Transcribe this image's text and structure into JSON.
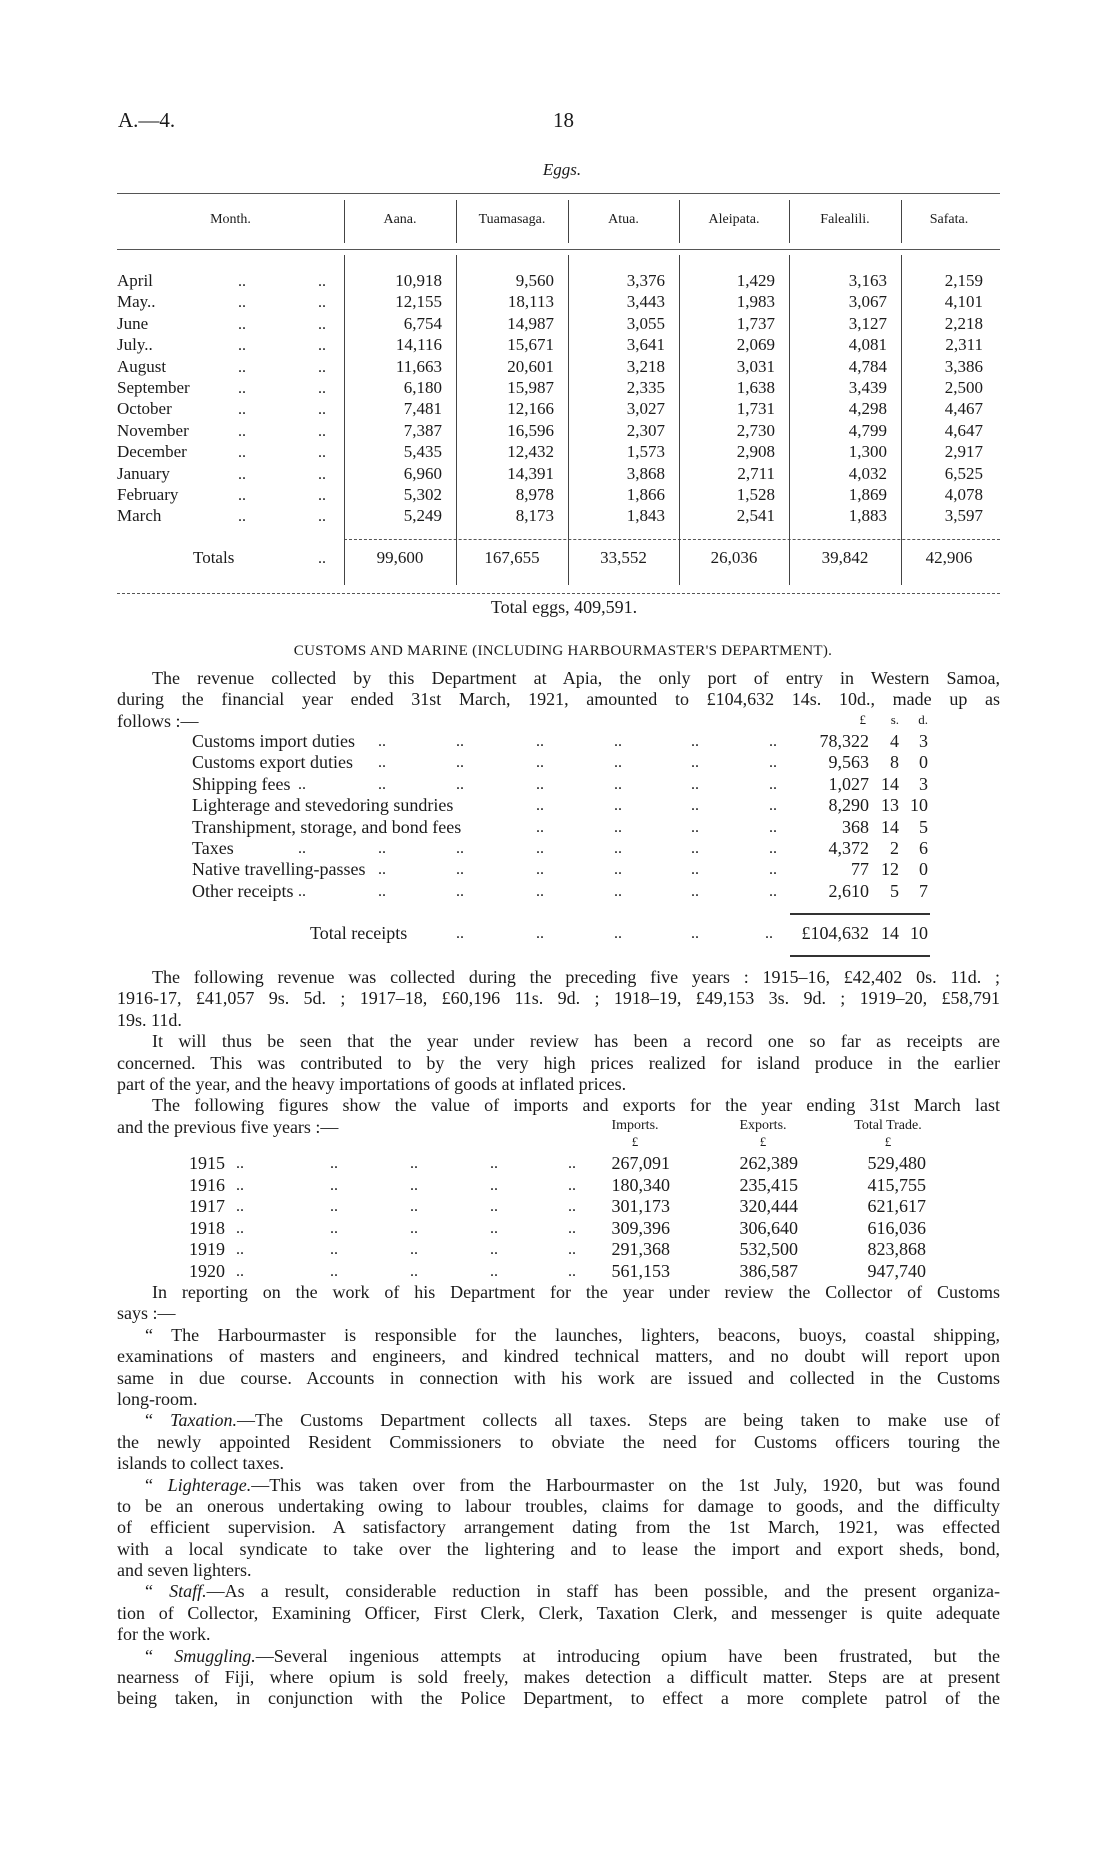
{
  "header": {
    "code": "A.—4.",
    "page": "18"
  },
  "eggs": {
    "title": "Eggs.",
    "month_header": "Month.",
    "columns": [
      "Aana.",
      "Tuamasaga.",
      "Atua.",
      "Aleipata.",
      "Falealili.",
      "Safata."
    ],
    "leader": "..",
    "rows": [
      {
        "month": "April",
        "values": [
          "10,918",
          "9,560",
          "3,376",
          "1,429",
          "3,163",
          "2,159"
        ]
      },
      {
        "month": "May..",
        "values": [
          "12,155",
          "18,113",
          "3,443",
          "1,983",
          "3,067",
          "4,101"
        ]
      },
      {
        "month": "June",
        "values": [
          "6,754",
          "14,987",
          "3,055",
          "1,737",
          "3,127",
          "2,218"
        ]
      },
      {
        "month": "July..",
        "values": [
          "14,116",
          "15,671",
          "3,641",
          "2,069",
          "4,081",
          "2,311"
        ]
      },
      {
        "month": "August",
        "values": [
          "11,663",
          "20,601",
          "3,218",
          "3,031",
          "4,784",
          "3,386"
        ]
      },
      {
        "month": "September",
        "values": [
          "6,180",
          "15,987",
          "2,335",
          "1,638",
          "3,439",
          "2,500"
        ]
      },
      {
        "month": "October",
        "values": [
          "7,481",
          "12,166",
          "3,027",
          "1,731",
          "4,298",
          "4,467"
        ]
      },
      {
        "month": "November",
        "values": [
          "7,387",
          "16,596",
          "2,307",
          "2,730",
          "4,799",
          "4,647"
        ]
      },
      {
        "month": "December",
        "values": [
          "5,435",
          "12,432",
          "1,573",
          "2,908",
          "1,300",
          "2,917"
        ]
      },
      {
        "month": "January",
        "values": [
          "6,960",
          "14,391",
          "3,868",
          "2,711",
          "4,032",
          "6,525"
        ]
      },
      {
        "month": "February",
        "values": [
          "5,302",
          "8,978",
          "1,866",
          "1,528",
          "1,869",
          "4,078"
        ]
      },
      {
        "month": "March",
        "values": [
          "5,249",
          "8,173",
          "1,843",
          "2,541",
          "1,883",
          "3,597"
        ]
      }
    ],
    "totals_label": "Totals",
    "totals": [
      "99,600",
      "167,655",
      "33,552",
      "26,036",
      "39,842",
      "42,906"
    ],
    "total_eggs": "Total eggs, 409,591."
  },
  "customs": {
    "heading": "CUSTOMS AND MARINE (INCLUDING HARBOURMASTER'S DEPARTMENT).",
    "intro": [
      "The revenue collected by this Department at Apia, the only port of entry in Western Samoa,",
      "during the financial year ended 31st March, 1921, amounted to £104,632 14s. 10d., made up as",
      "follows :—"
    ],
    "revenue_header": {
      "pounds": "£",
      "shillings": "s.",
      "pence": "d."
    },
    "revenue_items": [
      {
        "label": "Customs import duties",
        "pounds": "78,322",
        "shillings": "4",
        "pence": "3"
      },
      {
        "label": "Customs export duties",
        "pounds": "9,563",
        "shillings": "8",
        "pence": "0"
      },
      {
        "label": "Shipping fees",
        "pounds": "1,027",
        "shillings": "14",
        "pence": "3"
      },
      {
        "label": "Lighterage and stevedoring sundries",
        "pounds": "8,290",
        "shillings": "13",
        "pence": "10"
      },
      {
        "label": "Transhipment, storage, and bond fees",
        "pounds": "368",
        "shillings": "14",
        "pence": "5"
      },
      {
        "label": "Taxes",
        "pounds": "4,372",
        "shillings": "2",
        "pence": "6"
      },
      {
        "label": "Native travelling-passes",
        "pounds": "77",
        "shillings": "12",
        "pence": "0"
      },
      {
        "label": "Other receipts",
        "pounds": "2,610",
        "shillings": "5",
        "pence": "7"
      }
    ],
    "revenue_total": {
      "label": "Total receipts",
      "pounds": "£104,632",
      "shillings": "14",
      "pence": "10"
    },
    "paragraphs_b": [
      {
        "lines": [
          "The following revenue was collected during the preceding five years : 1915–16, £42,402 0s. 11d. ;",
          "1916-17, £41,057 9s. 5d. ; 1917–18, £60,196 11s. 9d. ; 1918–19, £49,153 3s. 9d. ; 1919–20, £58,791",
          "19s. 11d."
        ]
      },
      {
        "lines": [
          "It will thus be seen that the year under review has been a record one so far as receipts are",
          "concerned. This was contributed to by the very high prices realized for island produce in the earlier",
          "part of the year, and the heavy importations of goods at inflated prices."
        ]
      },
      {
        "lines": [
          "The following figures show the value of imports and exports for the year ending 31st March last",
          "and the previous five years :—"
        ]
      }
    ],
    "trade": {
      "columns": [
        "Imports.",
        "Exports.",
        "Total Trade."
      ],
      "units": [
        "£",
        "£",
        "£"
      ],
      "rows": [
        {
          "year": "1915",
          "imports": "267,091",
          "exports": "262,389",
          "total": "529,480"
        },
        {
          "year": "1916",
          "imports": "180,340",
          "exports": "235,415",
          "total": "415,755"
        },
        {
          "year": "1917",
          "imports": "301,173",
          "exports": "320,444",
          "total": "621,617"
        },
        {
          "year": "1918",
          "imports": "309,396",
          "exports": "306,640",
          "total": "616,036"
        },
        {
          "year": "1919",
          "imports": "291,368",
          "exports": "532,500",
          "total": "823,868"
        },
        {
          "year": "1920",
          "imports": "561,153",
          "exports": "386,587",
          "total": "947,740"
        }
      ]
    },
    "paragraphs_c": [
      {
        "lines": [
          "In reporting on the work of his Department for the year under review the Collector of Customs",
          "says :—"
        ]
      },
      {
        "open": "“ ",
        "lead": "",
        "lines": [
          "The Harbourmaster is responsible for the launches, lighters, beacons, buoys, coastal shipping,",
          "examinations of masters and engineers, and kindred technical matters, and no doubt will report upon",
          "same in due course. Accounts in connection with his work are issued and collected in the Customs",
          "long-room."
        ]
      },
      {
        "open": "“ ",
        "lead": "Taxation.",
        "lines": [
          "—The Customs Department collects all taxes. Steps are being taken to make use of",
          "the newly appointed Resident Commissioners to obviate the need for Customs officers touring the",
          "islands to collect taxes."
        ]
      },
      {
        "open": "“ ",
        "lead": "Lighterage.",
        "lines": [
          "—This was taken over from the Harbourmaster on the 1st July, 1920, but was found",
          "to be an onerous undertaking owing to labour troubles, claims for damage to goods, and the difficulty",
          "of efficient supervision. A satisfactory arrangement dating from the 1st March, 1921, was effected",
          "with a local syndicate to take over the lightering and to lease the import and export sheds, bond,",
          "and seven lighters."
        ]
      },
      {
        "open": "“ ",
        "lead": "Staff.",
        "lines": [
          "—As a result, considerable reduction in staff has been possible, and the present organiza-",
          "tion of Collector, Examining Officer, First Clerk, Clerk, Taxation Clerk, and messenger is quite adequate",
          "for the work."
        ]
      },
      {
        "open": "“ ",
        "lead": "Smuggling.",
        "lines": [
          "—Several ingenious attempts at introducing opium have been frustrated, but the",
          "nearness of Fiji, where opium is sold freely, makes detection a difficult matter. Steps are at present",
          "being taken, in conjunction with the Police Department, to effect a more complete patrol of the"
        ]
      }
    ]
  }
}
